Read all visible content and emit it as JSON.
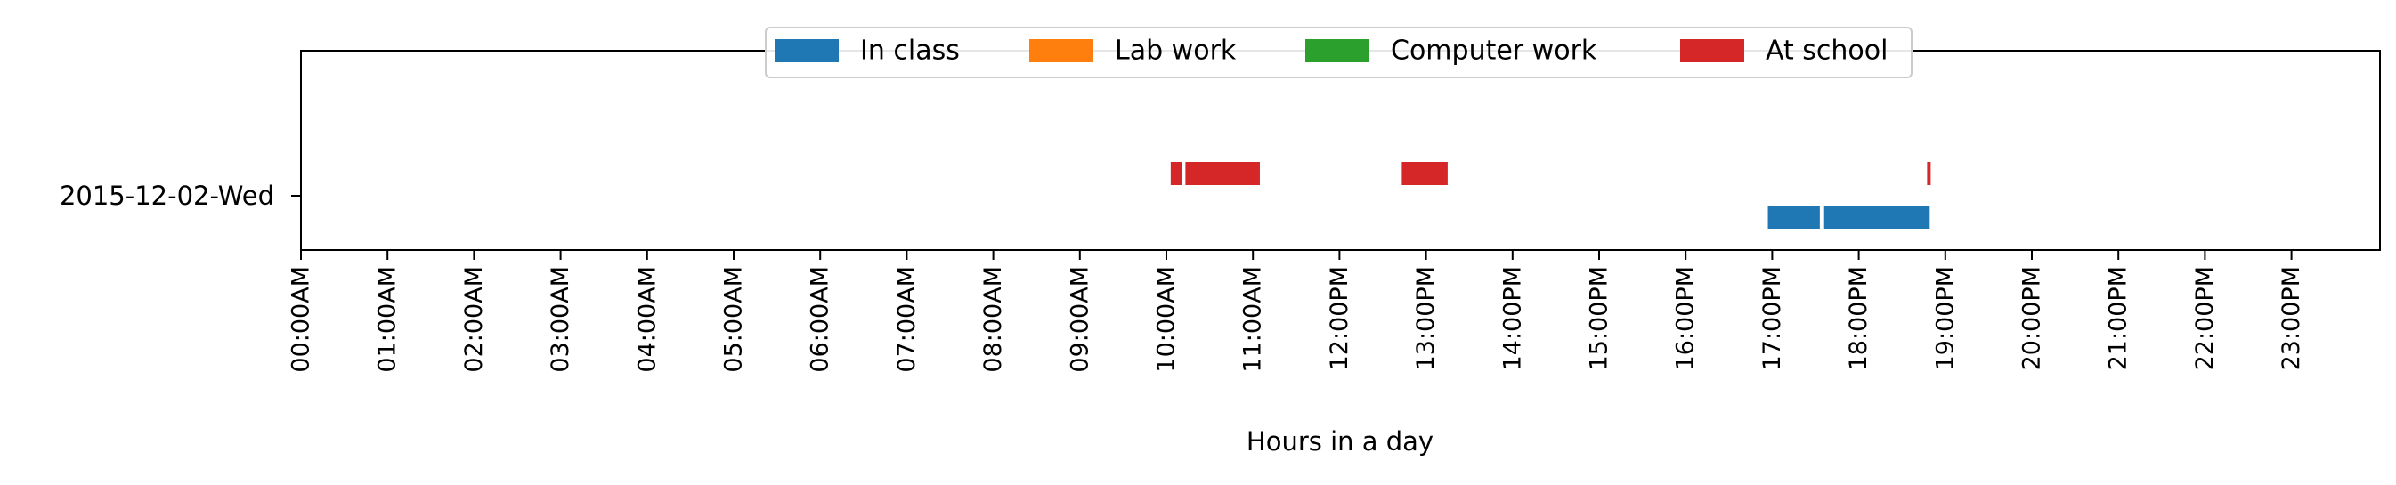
{
  "chart_data": {
    "type": "bar",
    "orientation": "horizontal",
    "xlabel": "Hours in a day",
    "ylabel": "",
    "xlim": [
      0,
      24
    ],
    "x_ticks": [
      {
        "value": 0,
        "label": "00:00AM"
      },
      {
        "value": 1,
        "label": "01:00AM"
      },
      {
        "value": 2,
        "label": "02:00AM"
      },
      {
        "value": 3,
        "label": "03:00AM"
      },
      {
        "value": 4,
        "label": "04:00AM"
      },
      {
        "value": 5,
        "label": "05:00AM"
      },
      {
        "value": 6,
        "label": "06:00AM"
      },
      {
        "value": 7,
        "label": "07:00AM"
      },
      {
        "value": 8,
        "label": "08:00AM"
      },
      {
        "value": 9,
        "label": "09:00AM"
      },
      {
        "value": 10,
        "label": "10:00AM"
      },
      {
        "value": 11,
        "label": "11:00AM"
      },
      {
        "value": 12,
        "label": "12:00PM"
      },
      {
        "value": 13,
        "label": "13:00PM"
      },
      {
        "value": 14,
        "label": "14:00PM"
      },
      {
        "value": 15,
        "label": "15:00PM"
      },
      {
        "value": 16,
        "label": "16:00PM"
      },
      {
        "value": 17,
        "label": "17:00PM"
      },
      {
        "value": 18,
        "label": "18:00PM"
      },
      {
        "value": 19,
        "label": "19:00PM"
      },
      {
        "value": 20,
        "label": "20:00PM"
      },
      {
        "value": 21,
        "label": "21:00PM"
      },
      {
        "value": 22,
        "label": "22:00PM"
      },
      {
        "value": 23,
        "label": "23:00PM"
      }
    ],
    "categories": [
      "2015-12-02-Wed"
    ],
    "legend_position": "top-center",
    "grid": false,
    "series": [
      {
        "name": "In class",
        "color": "#1f77b4",
        "intervals": [
          [
            16.95,
            17.55
          ],
          [
            17.6,
            18.82
          ]
        ]
      },
      {
        "name": "Lab work",
        "color": "#ff7f0e",
        "intervals": []
      },
      {
        "name": "Computer work",
        "color": "#2ca02c",
        "intervals": []
      },
      {
        "name": "At school",
        "color": "#d62728",
        "intervals": [
          [
            10.05,
            10.18
          ],
          [
            10.22,
            11.08
          ],
          [
            12.72,
            13.25
          ],
          [
            18.79,
            18.83
          ]
        ]
      }
    ]
  }
}
